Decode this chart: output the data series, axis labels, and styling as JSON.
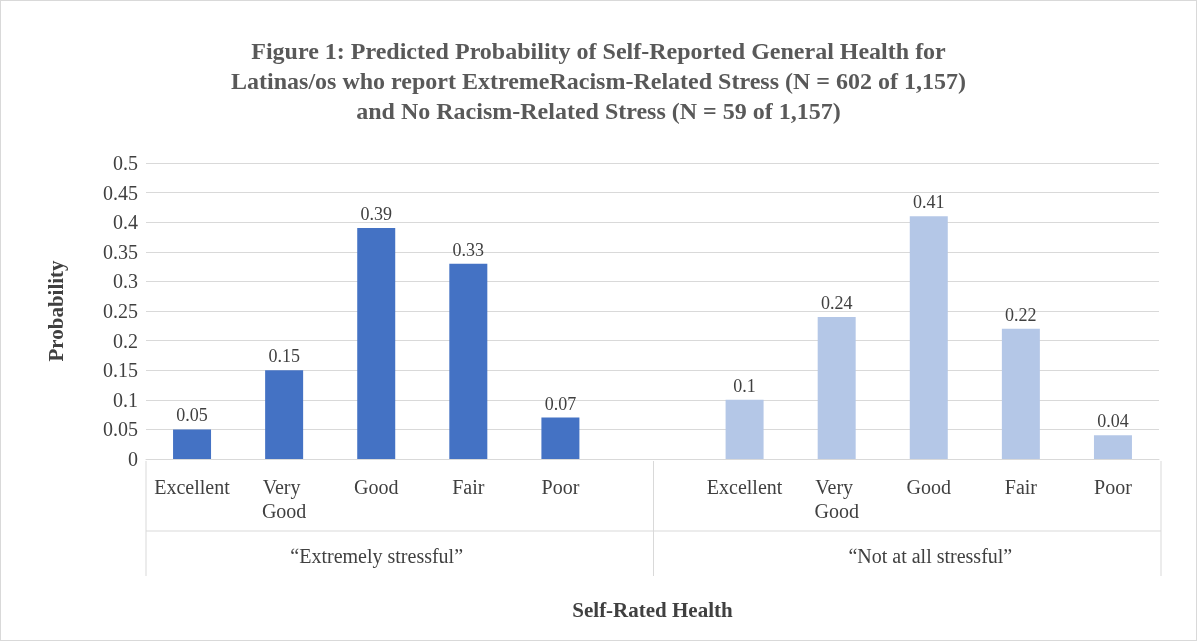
{
  "chart_data": {
    "type": "bar",
    "title": "Figure 1: Predicted Probability of Self-Reported General Health for\nLatinas/os who report ExtremeRacism-Related Stress (N = 602 of 1,157)\nand No Racism-Related Stress (N = 59 of 1,157)",
    "xlabel": "Self-Rated Health",
    "ylabel": "Probability",
    "categories": [
      "Excellent",
      "Very Good",
      "Good",
      "Fair",
      "Poor",
      null,
      "Excellent",
      "Very Good",
      "Good",
      "Fair",
      "Poor"
    ],
    "series": [
      {
        "color": "#4472c4",
        "values": [
          0.05,
          0.15,
          0.39,
          0.33,
          0.07,
          null,
          null,
          null,
          null,
          null,
          null
        ]
      },
      {
        "color": "#b4c7e7",
        "values": [
          null,
          null,
          null,
          null,
          null,
          null,
          0.1,
          0.24,
          0.41,
          0.22,
          0.04
        ]
      }
    ],
    "stacked": true,
    "annotations": [
      "“Extremely stressful”",
      "“Not at all stressful”"
    ],
    "ylim": [
      0,
      0.5
    ],
    "yticks": [
      0,
      0.05,
      0.1,
      0.15,
      0.2,
      0.25,
      0.3,
      0.35,
      0.4,
      0.45,
      0.5
    ],
    "grid": "y",
    "data_labels": true
  }
}
